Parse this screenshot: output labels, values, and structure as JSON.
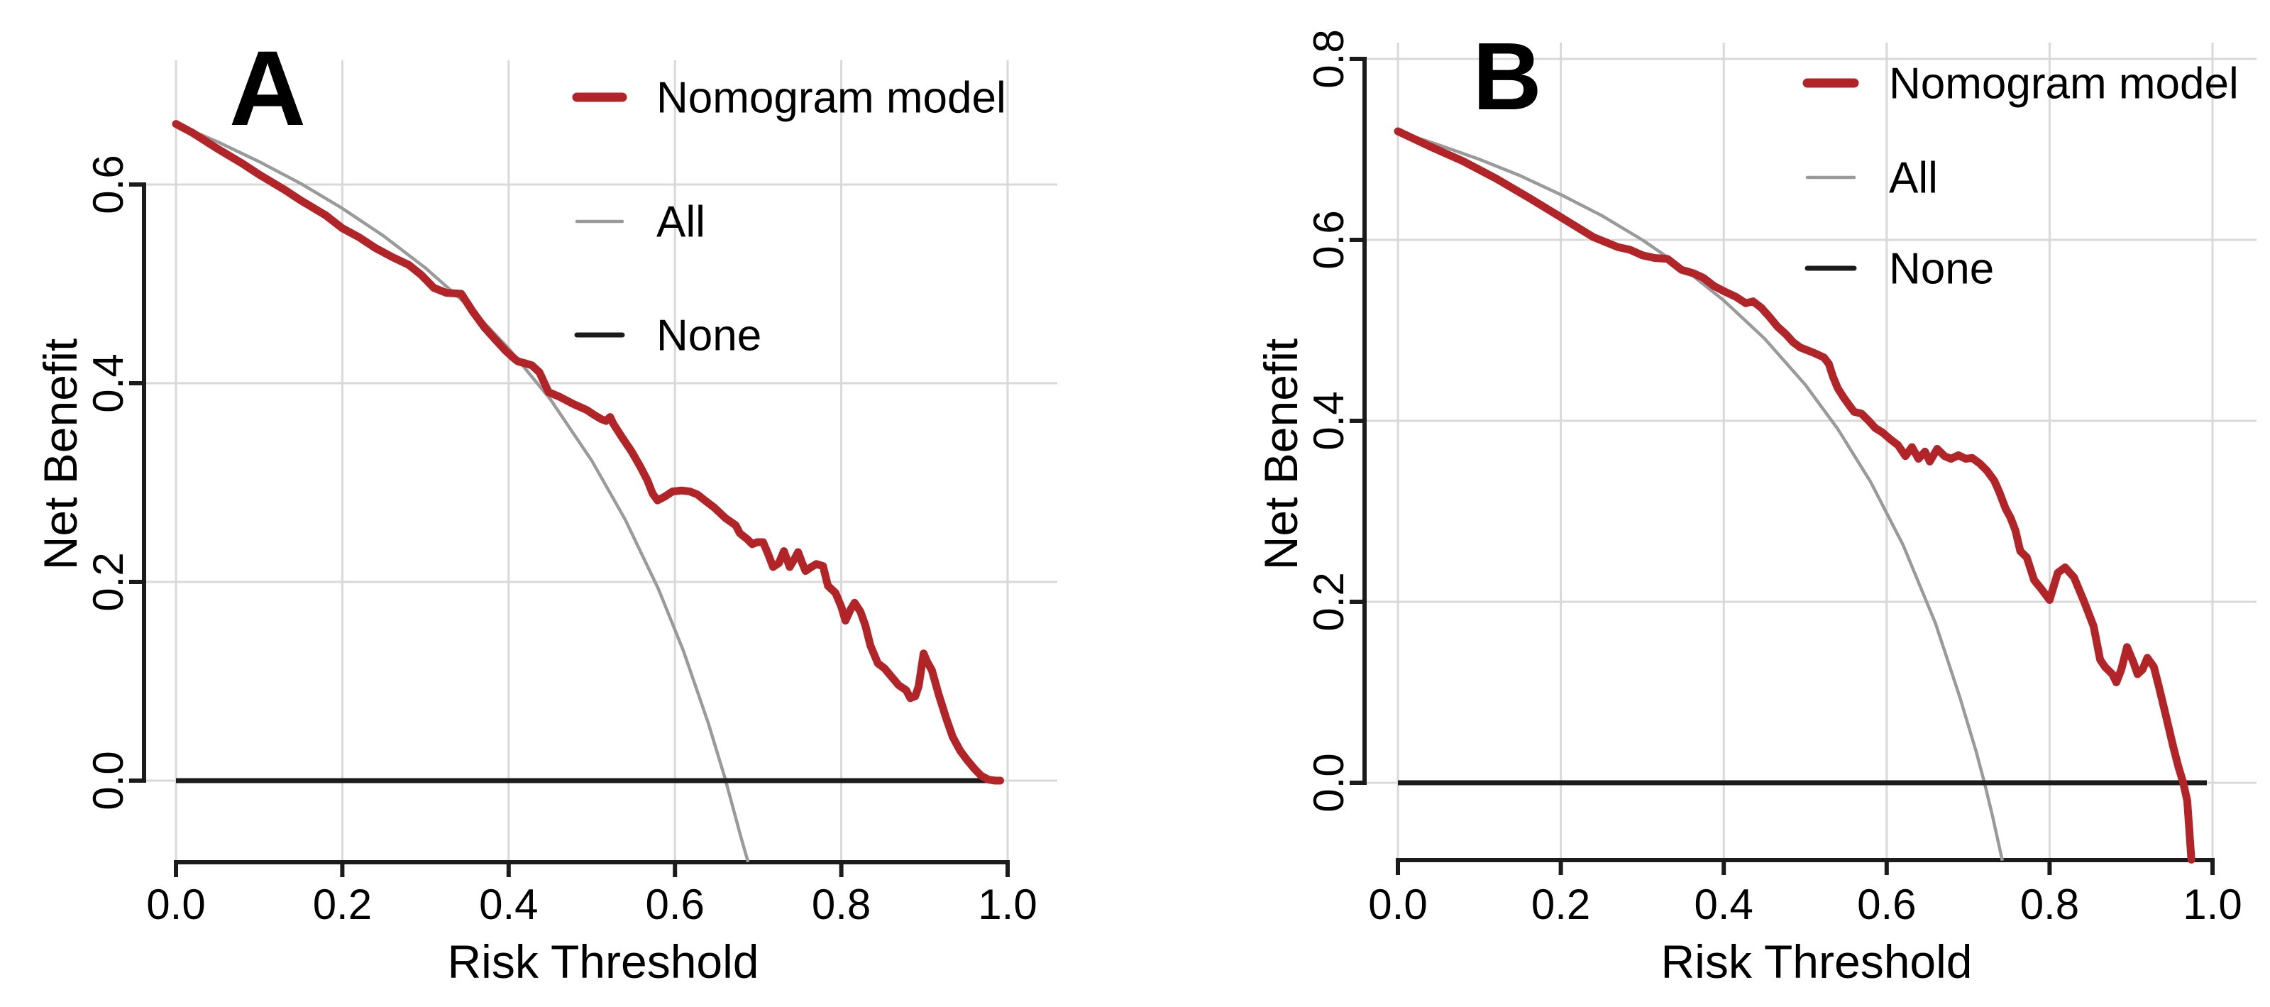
{
  "figure": {
    "background": "#ffffff",
    "description_labels": {
      "xlabel": "Risk Threshold",
      "ylabel": "Net Benefit"
    }
  },
  "colors": {
    "nomogram": "#B22427",
    "all": "#9A9A9A",
    "none": "#1B1B1B",
    "axis": "#1B1B1B",
    "grid": "#D9D9D9",
    "text": "#000000"
  },
  "chart_data": [
    {
      "type": "line",
      "panel_label": "A",
      "xlabel": "Risk Threshold",
      "ylabel": "Net Benefit",
      "xlim": [
        -0.04,
        1.06
      ],
      "ylim": [
        -0.08,
        0.72
      ],
      "grid": true,
      "legend_position": "top-right",
      "x_ticks": [
        0.0,
        0.2,
        0.4,
        0.6,
        0.8,
        1.0
      ],
      "x_tick_labels": [
        "0.0",
        "0.2",
        "0.4",
        "0.6",
        "0.8",
        "1.0"
      ],
      "y_ticks": [
        0.0,
        0.2,
        0.4,
        0.6
      ],
      "y_tick_labels": [
        "0.0",
        "0.2",
        "0.4",
        "0.6"
      ],
      "legend": [
        {
          "label": "Nomogram model",
          "series": "nomogram"
        },
        {
          "label": "All",
          "series": "all"
        },
        {
          "label": "None",
          "series": "none"
        }
      ],
      "series": [
        {
          "name": "All",
          "key": "all",
          "points": [
            [
              0.0,
              0.661
            ],
            [
              0.05,
              0.643
            ],
            [
              0.1,
              0.623
            ],
            [
              0.15,
              0.601
            ],
            [
              0.2,
              0.576
            ],
            [
              0.25,
              0.548
            ],
            [
              0.3,
              0.516
            ],
            [
              0.35,
              0.479
            ],
            [
              0.4,
              0.435
            ],
            [
              0.45,
              0.384
            ],
            [
              0.5,
              0.322
            ],
            [
              0.54,
              0.263
            ],
            [
              0.58,
              0.193
            ],
            [
              0.61,
              0.131
            ],
            [
              0.64,
              0.058
            ],
            [
              0.66,
              0.003
            ],
            [
              0.68,
              -0.059
            ],
            [
              0.688,
              -0.082
            ]
          ]
        },
        {
          "name": "None",
          "key": "none",
          "points": [
            [
              0.0,
              0.0
            ],
            [
              0.991,
              0.0
            ]
          ]
        },
        {
          "name": "Nomogram model",
          "key": "nomogram",
          "points": [
            [
              0.0,
              0.661
            ],
            [
              0.02,
              0.652
            ],
            [
              0.05,
              0.636
            ],
            [
              0.08,
              0.621
            ],
            [
              0.1,
              0.61
            ],
            [
              0.13,
              0.595
            ],
            [
              0.15,
              0.584
            ],
            [
              0.18,
              0.569
            ],
            [
              0.2,
              0.556
            ],
            [
              0.22,
              0.547
            ],
            [
              0.24,
              0.536
            ],
            [
              0.26,
              0.527
            ],
            [
              0.28,
              0.519
            ],
            [
              0.295,
              0.509
            ],
            [
              0.31,
              0.496
            ],
            [
              0.325,
              0.491
            ],
            [
              0.343,
              0.49
            ],
            [
              0.357,
              0.472
            ],
            [
              0.371,
              0.456
            ],
            [
              0.385,
              0.443
            ],
            [
              0.396,
              0.433
            ],
            [
              0.405,
              0.426
            ],
            [
              0.411,
              0.422
            ],
            [
              0.42,
              0.42
            ],
            [
              0.428,
              0.418
            ],
            [
              0.437,
              0.411
            ],
            [
              0.448,
              0.391
            ],
            [
              0.462,
              0.386
            ],
            [
              0.478,
              0.379
            ],
            [
              0.494,
              0.373
            ],
            [
              0.503,
              0.368
            ],
            [
              0.511,
              0.364
            ],
            [
              0.517,
              0.362
            ],
            [
              0.522,
              0.366
            ],
            [
              0.526,
              0.359
            ],
            [
              0.536,
              0.346
            ],
            [
              0.548,
              0.331
            ],
            [
              0.559,
              0.315
            ],
            [
              0.567,
              0.302
            ],
            [
              0.573,
              0.289
            ],
            [
              0.579,
              0.282
            ],
            [
              0.588,
              0.286
            ],
            [
              0.597,
              0.291
            ],
            [
              0.608,
              0.292
            ],
            [
              0.618,
              0.291
            ],
            [
              0.627,
              0.288
            ],
            [
              0.636,
              0.282
            ],
            [
              0.647,
              0.275
            ],
            [
              0.661,
              0.264
            ],
            [
              0.673,
              0.257
            ],
            [
              0.678,
              0.249
            ],
            [
              0.687,
              0.243
            ],
            [
              0.693,
              0.238
            ],
            [
              0.699,
              0.24
            ],
            [
              0.706,
              0.24
            ],
            [
              0.712,
              0.228
            ],
            [
              0.718,
              0.215
            ],
            [
              0.725,
              0.219
            ],
            [
              0.731,
              0.231
            ],
            [
              0.738,
              0.215
            ],
            [
              0.743,
              0.222
            ],
            [
              0.748,
              0.23
            ],
            [
              0.753,
              0.219
            ],
            [
              0.757,
              0.211
            ],
            [
              0.764,
              0.215
            ],
            [
              0.77,
              0.218
            ],
            [
              0.778,
              0.216
            ],
            [
              0.784,
              0.196
            ],
            [
              0.793,
              0.189
            ],
            [
              0.8,
              0.175
            ],
            [
              0.805,
              0.161
            ],
            [
              0.811,
              0.172
            ],
            [
              0.816,
              0.179
            ],
            [
              0.823,
              0.17
            ],
            [
              0.829,
              0.156
            ],
            [
              0.835,
              0.136
            ],
            [
              0.844,
              0.118
            ],
            [
              0.852,
              0.113
            ],
            [
              0.861,
              0.104
            ],
            [
              0.869,
              0.096
            ],
            [
              0.878,
              0.091
            ],
            [
              0.883,
              0.083
            ],
            [
              0.889,
              0.085
            ],
            [
              0.893,
              0.095
            ],
            [
              0.899,
              0.128
            ],
            [
              0.903,
              0.12
            ],
            [
              0.909,
              0.111
            ],
            [
              0.917,
              0.087
            ],
            [
              0.926,
              0.063
            ],
            [
              0.934,
              0.044
            ],
            [
              0.943,
              0.03
            ],
            [
              0.951,
              0.021
            ],
            [
              0.96,
              0.012
            ],
            [
              0.968,
              0.005
            ],
            [
              0.977,
              0.001
            ],
            [
              0.985,
              0.0
            ],
            [
              0.991,
              0.0
            ]
          ]
        }
      ]
    },
    {
      "type": "line",
      "panel_label": "B",
      "xlabel": "Risk Threshold",
      "ylabel": "Net Benefit",
      "xlim": [
        -0.04,
        1.06
      ],
      "ylim": [
        -0.085,
        0.82
      ],
      "grid": true,
      "legend_position": "top-right",
      "x_ticks": [
        0.0,
        0.2,
        0.4,
        0.6,
        0.8,
        1.0
      ],
      "x_tick_labels": [
        "0.0",
        "0.2",
        "0.4",
        "0.6",
        "0.8",
        "1.0"
      ],
      "y_ticks": [
        0.0,
        0.2,
        0.4,
        0.6,
        0.8
      ],
      "y_tick_labels": [
        "0.0",
        "0.2",
        "0.4",
        "0.6",
        "0.8"
      ],
      "legend": [
        {
          "label": "Nomogram model",
          "series": "nomogram"
        },
        {
          "label": "All",
          "series": "all"
        },
        {
          "label": "None",
          "series": "none"
        }
      ],
      "series": [
        {
          "name": "All",
          "key": "all",
          "points": [
            [
              0.0,
              0.72
            ],
            [
              0.05,
              0.705
            ],
            [
              0.1,
              0.689
            ],
            [
              0.15,
              0.671
            ],
            [
              0.2,
              0.65
            ],
            [
              0.25,
              0.627
            ],
            [
              0.3,
              0.6
            ],
            [
              0.35,
              0.569
            ],
            [
              0.4,
              0.533
            ],
            [
              0.45,
              0.491
            ],
            [
              0.5,
              0.44
            ],
            [
              0.54,
              0.391
            ],
            [
              0.58,
              0.333
            ],
            [
              0.62,
              0.263
            ],
            [
              0.66,
              0.176
            ],
            [
              0.69,
              0.094
            ],
            [
              0.71,
              0.034
            ],
            [
              0.72,
              0.0
            ],
            [
              0.73,
              -0.037
            ],
            [
              0.742,
              -0.086
            ]
          ]
        },
        {
          "name": "None",
          "key": "none",
          "points": [
            [
              0.0,
              0.0
            ],
            [
              0.993,
              0.0
            ]
          ]
        },
        {
          "name": "Nomogram model",
          "key": "nomogram",
          "points": [
            [
              0.0,
              0.72
            ],
            [
              0.04,
              0.703
            ],
            [
              0.08,
              0.687
            ],
            [
              0.12,
              0.668
            ],
            [
              0.16,
              0.647
            ],
            [
              0.2,
              0.625
            ],
            [
              0.24,
              0.603
            ],
            [
              0.27,
              0.592
            ],
            [
              0.285,
              0.589
            ],
            [
              0.3,
              0.583
            ],
            [
              0.315,
              0.58
            ],
            [
              0.331,
              0.579
            ],
            [
              0.348,
              0.567
            ],
            [
              0.363,
              0.563
            ],
            [
              0.375,
              0.558
            ],
            [
              0.388,
              0.549
            ],
            [
              0.401,
              0.543
            ],
            [
              0.415,
              0.537
            ],
            [
              0.427,
              0.53
            ],
            [
              0.436,
              0.532
            ],
            [
              0.446,
              0.525
            ],
            [
              0.456,
              0.515
            ],
            [
              0.466,
              0.504
            ],
            [
              0.476,
              0.496
            ],
            [
              0.485,
              0.487
            ],
            [
              0.494,
              0.481
            ],
            [
              0.511,
              0.475
            ],
            [
              0.523,
              0.47
            ],
            [
              0.529,
              0.463
            ],
            [
              0.534,
              0.449
            ],
            [
              0.54,
              0.436
            ],
            [
              0.547,
              0.426
            ],
            [
              0.555,
              0.416
            ],
            [
              0.56,
              0.41
            ],
            [
              0.569,
              0.408
            ],
            [
              0.578,
              0.4
            ],
            [
              0.586,
              0.392
            ],
            [
              0.595,
              0.387
            ],
            [
              0.604,
              0.38
            ],
            [
              0.614,
              0.373
            ],
            [
              0.623,
              0.361
            ],
            [
              0.631,
              0.371
            ],
            [
              0.639,
              0.358
            ],
            [
              0.647,
              0.366
            ],
            [
              0.653,
              0.355
            ],
            [
              0.662,
              0.369
            ],
            [
              0.671,
              0.361
            ],
            [
              0.679,
              0.358
            ],
            [
              0.688,
              0.362
            ],
            [
              0.697,
              0.358
            ],
            [
              0.705,
              0.359
            ],
            [
              0.714,
              0.353
            ],
            [
              0.723,
              0.345
            ],
            [
              0.732,
              0.334
            ],
            [
              0.738,
              0.322
            ],
            [
              0.746,
              0.303
            ],
            [
              0.752,
              0.293
            ],
            [
              0.758,
              0.279
            ],
            [
              0.764,
              0.256
            ],
            [
              0.772,
              0.249
            ],
            [
              0.781,
              0.224
            ],
            [
              0.79,
              0.214
            ],
            [
              0.8,
              0.202
            ],
            [
              0.81,
              0.232
            ],
            [
              0.819,
              0.238
            ],
            [
              0.83,
              0.227
            ],
            [
              0.842,
              0.201
            ],
            [
              0.854,
              0.173
            ],
            [
              0.862,
              0.136
            ],
            [
              0.868,
              0.128
            ],
            [
              0.877,
              0.12
            ],
            [
              0.882,
              0.111
            ],
            [
              0.888,
              0.125
            ],
            [
              0.895,
              0.15
            ],
            [
              0.903,
              0.133
            ],
            [
              0.908,
              0.12
            ],
            [
              0.914,
              0.125
            ],
            [
              0.92,
              0.138
            ],
            [
              0.928,
              0.128
            ],
            [
              0.934,
              0.107
            ],
            [
              0.943,
              0.073
            ],
            [
              0.952,
              0.039
            ],
            [
              0.958,
              0.018
            ],
            [
              0.964,
              0.0
            ],
            [
              0.969,
              -0.02
            ],
            [
              0.974,
              -0.085
            ]
          ]
        }
      ]
    }
  ]
}
